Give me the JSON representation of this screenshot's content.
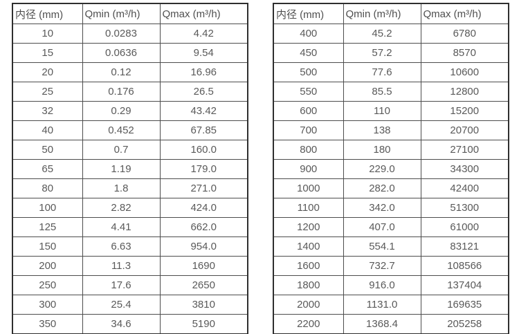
{
  "tables": [
    {
      "name": "flow-table-small-diameters",
      "headers": [
        "内径 (mm)",
        "Qmin (m³/h)",
        "Qmax (m³/h)"
      ],
      "rows": [
        [
          "10",
          "0.0283",
          "4.42"
        ],
        [
          "15",
          "0.0636",
          "9.54"
        ],
        [
          "20",
          "0.12",
          "16.96"
        ],
        [
          "25",
          "0.176",
          "26.5"
        ],
        [
          "32",
          "0.29",
          "43.42"
        ],
        [
          "40",
          "0.452",
          "67.85"
        ],
        [
          "50",
          "0.7",
          "160.0"
        ],
        [
          "65",
          "1.19",
          "179.0"
        ],
        [
          "80",
          "1.8",
          "271.0"
        ],
        [
          "100",
          "2.82",
          "424.0"
        ],
        [
          "125",
          "4.41",
          "662.0"
        ],
        [
          "150",
          "6.63",
          "954.0"
        ],
        [
          "200",
          "11.3",
          "1690"
        ],
        [
          "250",
          "17.6",
          "2650"
        ],
        [
          "300",
          "25.4",
          "3810"
        ],
        [
          "350",
          "34.6",
          "5190"
        ]
      ]
    },
    {
      "name": "flow-table-large-diameters",
      "headers": [
        "内径 (mm)",
        "Qmin (m³/h)",
        "Qmax (m³/h)"
      ],
      "rows": [
        [
          "400",
          "45.2",
          "6780"
        ],
        [
          "450",
          "57.2",
          "8570"
        ],
        [
          "500",
          "77.6",
          "10600"
        ],
        [
          "550",
          "85.5",
          "12800"
        ],
        [
          "600",
          "110",
          "15200"
        ],
        [
          "700",
          "138",
          "20700"
        ],
        [
          "800",
          "180",
          "27100"
        ],
        [
          "900",
          "229.0",
          "34300"
        ],
        [
          "1000",
          "282.0",
          "42400"
        ],
        [
          "1100",
          "342.0",
          "51300"
        ],
        [
          "1200",
          "407.0",
          "61000"
        ],
        [
          "1400",
          "554.1",
          "83121"
        ],
        [
          "1600",
          "732.7",
          "108566"
        ],
        [
          "1800",
          "916.0",
          "137404"
        ],
        [
          "2000",
          "1131.0",
          "169635"
        ],
        [
          "2200",
          "1368.4",
          "205258"
        ]
      ]
    }
  ],
  "colors": {
    "text": "#595959",
    "grid_line": "#4c4c4c",
    "outer_border": "#2e2e2e",
    "background": "#ffffff"
  }
}
